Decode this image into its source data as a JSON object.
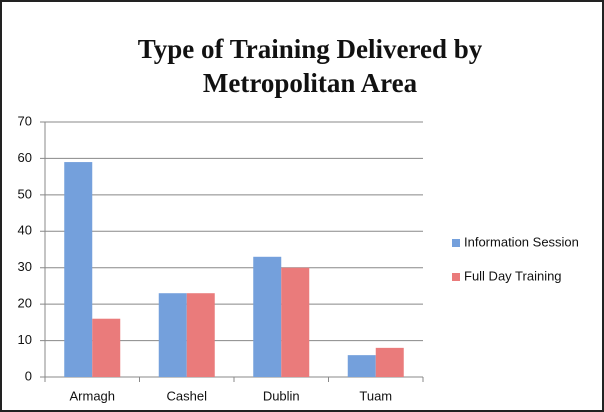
{
  "chart_data": {
    "type": "bar",
    "title": "Type of Training Delivered by Metropolitan Area",
    "categories": [
      "Armagh",
      "Cashel",
      "Dublin",
      "Tuam"
    ],
    "series": [
      {
        "name": "Information Session",
        "color": "#74a0dc",
        "values": [
          59,
          23,
          33,
          6
        ]
      },
      {
        "name": "Full Day Training",
        "color": "#ea7b7b",
        "values": [
          16,
          23,
          30,
          8
        ]
      }
    ],
    "ylim": [
      0,
      70
    ],
    "yticks": [
      0,
      10,
      20,
      30,
      40,
      50,
      60,
      70
    ],
    "grid": true,
    "legend": "right"
  }
}
